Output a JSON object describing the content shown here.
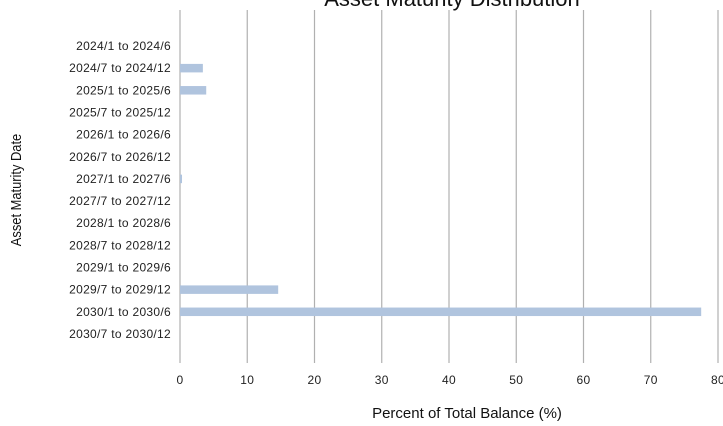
{
  "chart_data": {
    "type": "bar",
    "orientation": "horizontal",
    "title": "Asset Maturity Distribution",
    "xlabel": "Percent of Total Balance (%)",
    "ylabel": "Asset Maturity Date",
    "xlim": [
      0,
      80
    ],
    "xticks": [
      "0",
      "10",
      "20",
      "30",
      "40",
      "50",
      "60",
      "70",
      "80"
    ],
    "grid": "vertical",
    "legend": "none",
    "bar_color": "#b0c4de",
    "grid_color": "#b0b0b0",
    "categories": [
      "2024/1 to 2024/6",
      "2024/7 to 2024/12",
      "2025/1 to 2025/6",
      "2025/7 to 2025/12",
      "2026/1 to 2026/6",
      "2026/7 to 2026/12",
      "2027/1 to 2027/6",
      "2027/7 to 2027/12",
      "2028/1 to 2028/6",
      "2028/7 to 2028/12",
      "2029/1 to 2029/6",
      "2029/7 to 2029/12",
      "2030/1 to 2030/6",
      "2030/7 to 2030/12"
    ],
    "values": [
      0,
      3.4,
      3.9,
      0,
      0,
      0,
      0.3,
      0,
      0,
      0,
      0,
      14.6,
      77.5,
      0
    ]
  }
}
